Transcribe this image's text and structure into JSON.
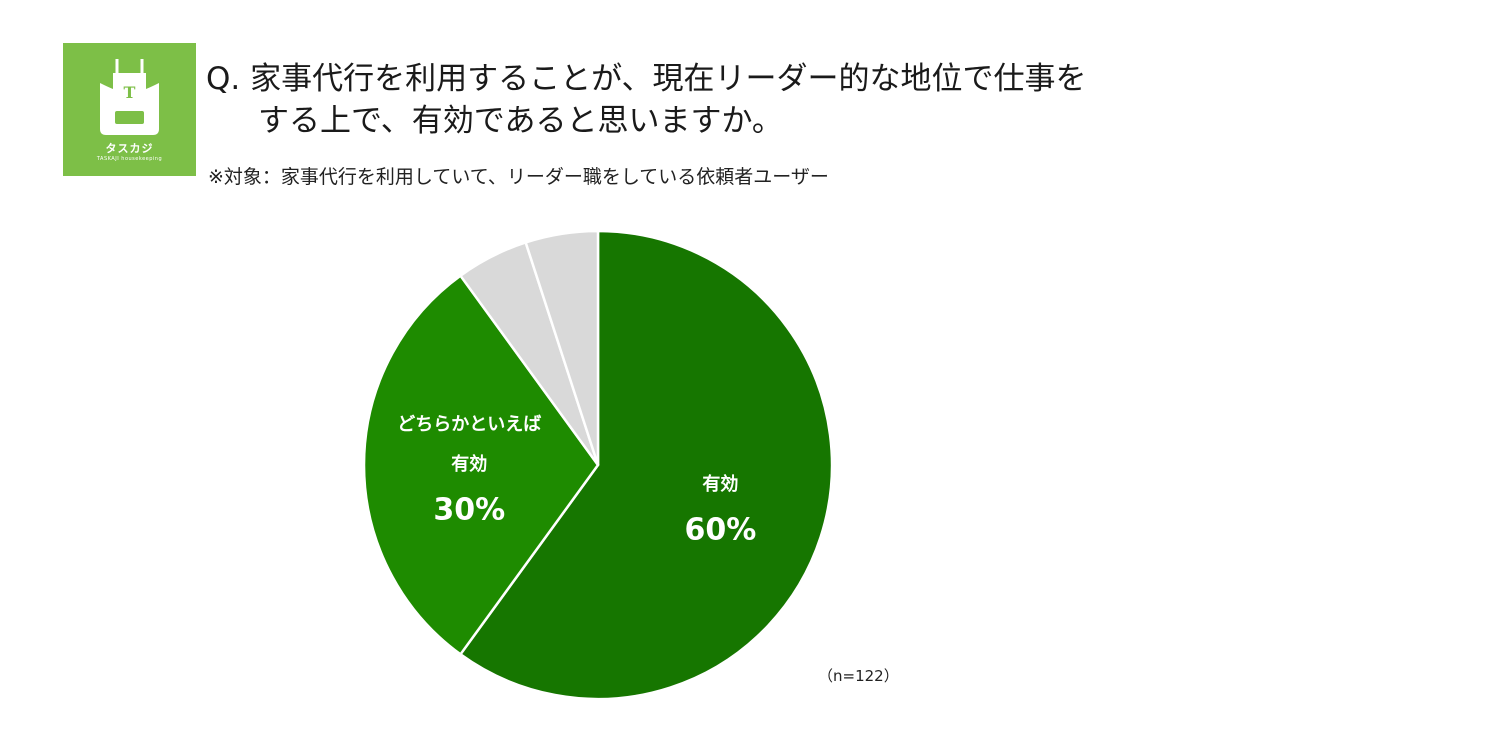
{
  "logo": {
    "letter": "T",
    "brand": "タスカジ",
    "sub": "TASKAJI housekeeping",
    "color": "#7dbf47"
  },
  "question": {
    "line1": "Q. 家事代行を利用することが、現在リーダー的な地位で仕事を",
    "line2": "する上で、有効であると思いますか。"
  },
  "subtitle": "※対象：家事代行を利用していて、リーダー職をしている依頼者ユーザー",
  "note": "（n=122）",
  "chart_data": {
    "type": "pie",
    "start_angle_deg": 0,
    "direction": "clockwise",
    "slices": [
      {
        "label_lines": [
          "有効"
        ],
        "value": 60,
        "display": "60%",
        "color": "#167600"
      },
      {
        "label_lines": [
          "どちらかといえば",
          "有効"
        ],
        "value": 30,
        "display": "30%",
        "color": "#1e8b00"
      },
      {
        "label_lines": [],
        "value": 5,
        "display": "",
        "color": "#d9d9d9"
      },
      {
        "label_lines": [],
        "value": 5,
        "display": "",
        "color": "#d9d9d9"
      }
    ]
  }
}
